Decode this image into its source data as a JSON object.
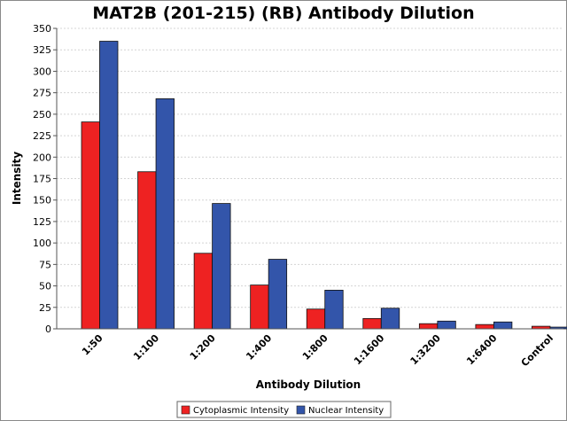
{
  "chart_data": {
    "type": "bar",
    "title": "MAT2B (201-215) (RB) Antibody Dilution",
    "xlabel": "Antibody Dilution",
    "ylabel": "Intensity",
    "ylim": [
      0,
      350
    ],
    "yticks": [
      0,
      25,
      50,
      75,
      100,
      125,
      150,
      175,
      200,
      225,
      250,
      275,
      300,
      325,
      350
    ],
    "grid": true,
    "legend_position": "bottom",
    "categories": [
      "1:50",
      "1:100",
      "1:200",
      "1:400",
      "1:800",
      "1:1600",
      "1:3200",
      "1:6400",
      "Control"
    ],
    "series": [
      {
        "name": "Cytoplasmic Intensity",
        "color": "#ee2222",
        "values": [
          241,
          183,
          88,
          51,
          23,
          12,
          6,
          5,
          3
        ]
      },
      {
        "name": "Nuclear Intensity",
        "color": "#3355aa",
        "values": [
          335,
          268,
          146,
          81,
          45,
          24,
          9,
          8,
          2
        ]
      }
    ]
  }
}
